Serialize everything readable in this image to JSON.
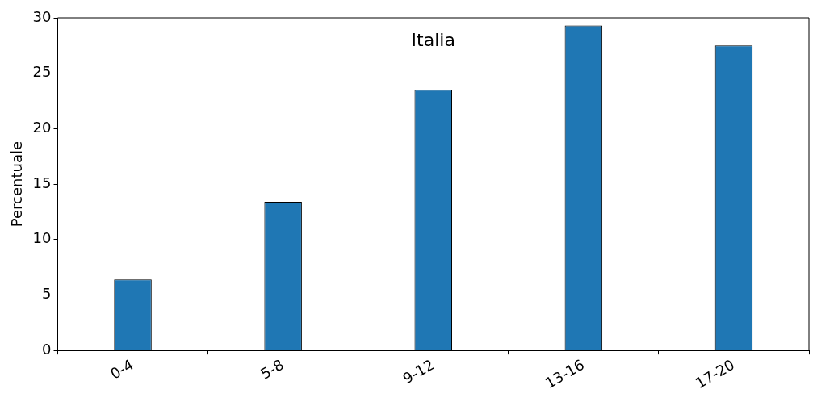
{
  "chart_data": {
    "type": "bar",
    "title": "Italia",
    "ylabel": "Percentuale",
    "categories": [
      "0-4",
      "5-8",
      "9-12",
      "13-16",
      "17-20"
    ],
    "values": [
      6.4,
      13.4,
      23.5,
      29.3,
      27.5
    ],
    "color": "#1f77b4",
    "ylim": [
      0,
      30
    ],
    "yticks": [
      0,
      5,
      10,
      15,
      20,
      25,
      30
    ],
    "grid": false
  }
}
